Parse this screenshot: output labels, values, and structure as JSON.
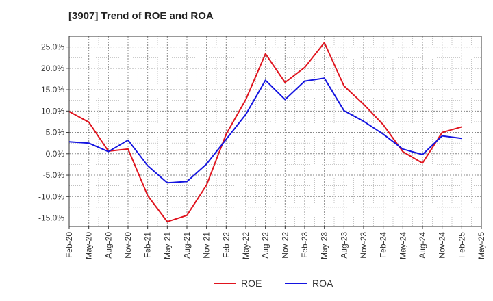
{
  "chart_data": {
    "type": "line",
    "title": "[3907]  Trend of ROE and ROA",
    "xlabel": "",
    "ylabel": "",
    "categories": [
      "Feb-20",
      "May-20",
      "Aug-20",
      "Nov-20",
      "Feb-21",
      "May-21",
      "Aug-21",
      "Nov-21",
      "Feb-22",
      "May-22",
      "Aug-22",
      "Nov-22",
      "Feb-23",
      "May-23",
      "Aug-23",
      "Nov-23",
      "Feb-24",
      "May-24",
      "Aug-24",
      "Nov-24",
      "Feb-25",
      "May-25"
    ],
    "y_ticks": [
      "25.0%",
      "20.0%",
      "15.0%",
      "10.0%",
      "5.0%",
      "0.0%",
      "-5.0%",
      "-10.0%",
      "-15.0%"
    ],
    "ylim": [
      -17,
      27.5
    ],
    "grid": true,
    "legend_position": "bottom",
    "series": [
      {
        "name": "ROE",
        "color": "#e0141e",
        "values": [
          9.9,
          7.4,
          0.6,
          1.1,
          -9.8,
          -15.9,
          -14.4,
          -7.3,
          4.6,
          12.7,
          23.4,
          16.7,
          20.2,
          26.0,
          15.9,
          11.6,
          6.8,
          0.5,
          -2.2,
          5.0,
          6.3,
          null
        ]
      },
      {
        "name": "ROA",
        "color": "#1414e0",
        "values": [
          2.8,
          2.5,
          0.5,
          3.2,
          -2.8,
          -6.8,
          -6.5,
          -2.4,
          3.4,
          9.2,
          17.2,
          12.7,
          17.0,
          17.7,
          10.1,
          7.6,
          4.6,
          1.1,
          -0.2,
          4.2,
          3.6,
          null
        ]
      }
    ]
  }
}
